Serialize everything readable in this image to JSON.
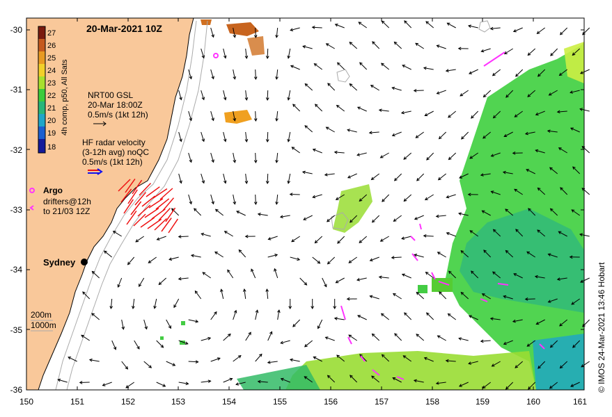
{
  "title": "20-Mar-2021 10Z",
  "credit": "© IMOS 24-Mar-2021 13:46 Hobart",
  "axes": {
    "x_ticks": [
      "150",
      "151",
      "152",
      "153",
      "154",
      "155",
      "156",
      "157",
      "158",
      "159",
      "160",
      "161"
    ],
    "y_ticks": [
      "-30",
      "-31",
      "-32",
      "-33",
      "-34",
      "-35",
      "-36"
    ]
  },
  "colorbar": {
    "label": "4h comp, p50, All Sats",
    "ticks": [
      "27",
      "26",
      "25",
      "24",
      "23",
      "22",
      "21",
      "20",
      "19",
      "18"
    ]
  },
  "legend": {
    "gsl_line1": "NRT00 GSL",
    "gsl_line2": "20-Mar 18:00Z",
    "gsl_line3": "0.5m/s (1kt 12h)",
    "hf_line1": "HF radar velocity",
    "hf_line2": "(3-12h avg) noQC",
    "hf_line3": "0.5m/s (1kt 12h)",
    "argo_label": "Argo",
    "drifter_line1": "drifters@12h",
    "drifter_line2": "to 21/03 12Z",
    "depth_200": "200m",
    "depth_1000": "1000m"
  },
  "places": {
    "sydney": "Sydney"
  },
  "colors": {
    "land": "#f9c89a",
    "argo": "#ff33ff",
    "hf_radar": "#ee1111",
    "arrow": "#000000",
    "isobath": "#aaaaaa"
  }
}
